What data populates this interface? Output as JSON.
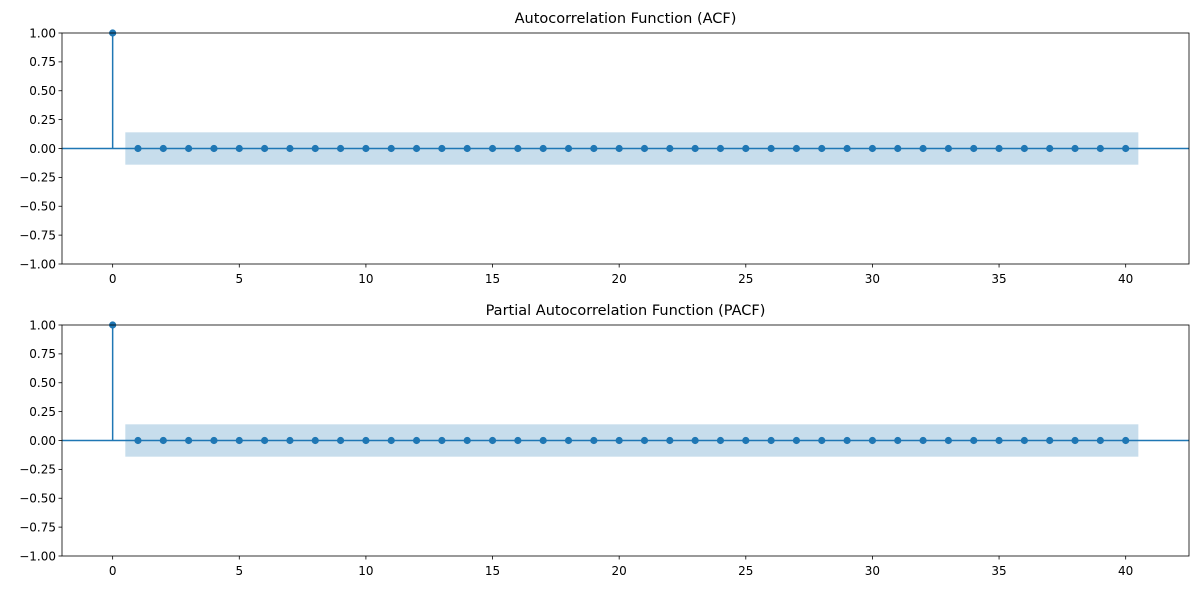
{
  "colors": {
    "series": "#1f77b4",
    "band": "#1f77b4",
    "axes": "#000000",
    "background": "#ffffff"
  },
  "chart_data": [
    {
      "type": "stem",
      "title": "Autocorrelation Function (ACF)",
      "xlabel": "",
      "ylabel": "",
      "x": [
        0,
        1,
        2,
        3,
        4,
        5,
        6,
        7,
        8,
        9,
        10,
        11,
        12,
        13,
        14,
        15,
        16,
        17,
        18,
        19,
        20,
        21,
        22,
        23,
        24,
        25,
        26,
        27,
        28,
        29,
        30,
        31,
        32,
        33,
        34,
        35,
        36,
        37,
        38,
        39,
        40
      ],
      "values": [
        1.0,
        0,
        0,
        0,
        0,
        0,
        0,
        0,
        0,
        0,
        0,
        0,
        0,
        0,
        0,
        0,
        0,
        0,
        0,
        0,
        0,
        0,
        0,
        0,
        0,
        0,
        0,
        0,
        0,
        0,
        0,
        0,
        0,
        0,
        0,
        0,
        0,
        0,
        0,
        0,
        0
      ],
      "confidence_band": {
        "lower": -0.14,
        "upper": 0.14,
        "x_range": [
          0.5,
          40.5
        ]
      },
      "xlim": [
        -2,
        42.5
      ],
      "ylim": [
        -1.0,
        1.0
      ],
      "xticks": [
        0,
        5,
        10,
        15,
        20,
        25,
        30,
        35,
        40
      ],
      "xtick_labels": [
        "0",
        "5",
        "10",
        "15",
        "20",
        "25",
        "30",
        "35",
        "40"
      ],
      "yticks": [
        -1.0,
        -0.75,
        -0.5,
        -0.25,
        0.0,
        0.25,
        0.5,
        0.75,
        1.0
      ],
      "ytick_labels": [
        "−1.00",
        "−0.75",
        "−0.50",
        "−0.25",
        "0.00",
        "0.25",
        "0.50",
        "0.75",
        "1.00"
      ],
      "grid": false
    },
    {
      "type": "stem",
      "title": "Partial Autocorrelation Function (PACF)",
      "xlabel": "",
      "ylabel": "",
      "x": [
        0,
        1,
        2,
        3,
        4,
        5,
        6,
        7,
        8,
        9,
        10,
        11,
        12,
        13,
        14,
        15,
        16,
        17,
        18,
        19,
        20,
        21,
        22,
        23,
        24,
        25,
        26,
        27,
        28,
        29,
        30,
        31,
        32,
        33,
        34,
        35,
        36,
        37,
        38,
        39,
        40
      ],
      "values": [
        1.0,
        0,
        0,
        0,
        0,
        0,
        0,
        0,
        0,
        0,
        0,
        0,
        0,
        0,
        0,
        0,
        0,
        0,
        0,
        0,
        0,
        0,
        0,
        0,
        0,
        0,
        0,
        0,
        0,
        0,
        0,
        0,
        0,
        0,
        0,
        0,
        0,
        0,
        0,
        0,
        0
      ],
      "confidence_band": {
        "lower": -0.14,
        "upper": 0.14,
        "x_range": [
          0.5,
          40.5
        ]
      },
      "xlim": [
        -2,
        42.5
      ],
      "ylim": [
        -1.0,
        1.0
      ],
      "xticks": [
        0,
        5,
        10,
        15,
        20,
        25,
        30,
        35,
        40
      ],
      "xtick_labels": [
        "0",
        "5",
        "10",
        "15",
        "20",
        "25",
        "30",
        "35",
        "40"
      ],
      "yticks": [
        -1.0,
        -0.75,
        -0.5,
        -0.25,
        0.0,
        0.25,
        0.5,
        0.75,
        1.0
      ],
      "ytick_labels": [
        "−1.00",
        "−0.75",
        "−0.50",
        "−0.25",
        "0.00",
        "0.25",
        "0.50",
        "0.75",
        "1.00"
      ],
      "grid": false
    }
  ]
}
